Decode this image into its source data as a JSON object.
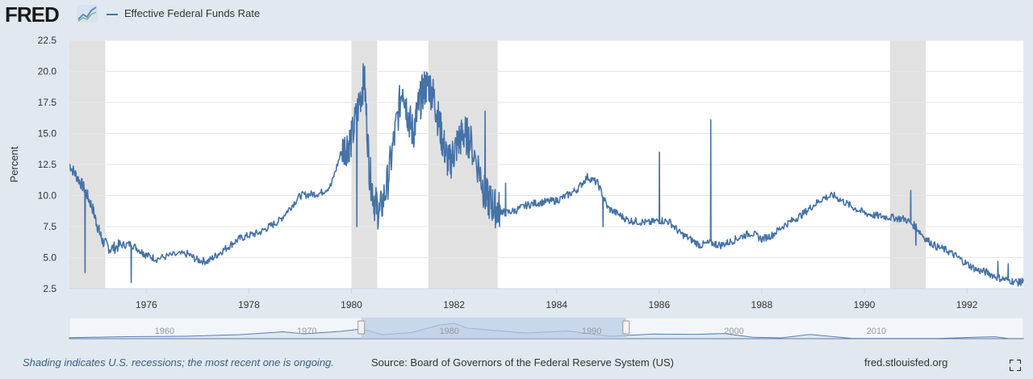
{
  "logo": {
    "text": "FRED",
    "mark_icon": "fred-graph-logo-icon"
  },
  "legend": {
    "label": "Effective Federal Funds Rate",
    "color": "#4572a7"
  },
  "footer": {
    "note": "Shading indicates U.S. recessions; the most recent one is ongoing.",
    "source": "Source: Board of Governors of the Federal Reserve System (US)",
    "site": "fred.stlouisfed.org",
    "fullscreen_icon": "fullscreen-icon"
  },
  "colors": {
    "line": "#4572a7",
    "recession": "#e1e1e1",
    "plot_bg": "#ffffff",
    "page_bg": "#e1e9f0",
    "navigator_fill": "#b8cbe6"
  },
  "chart_data": {
    "type": "line",
    "title": "",
    "xlabel": "",
    "ylabel": "Percent",
    "xlim": [
      1974.5,
      1993.1
    ],
    "ylim": [
      2.5,
      22.5
    ],
    "yticks": [
      2.5,
      5.0,
      7.5,
      10.0,
      12.5,
      15.0,
      17.5,
      20.0,
      22.5
    ],
    "ytick_labels": [
      "2.5",
      "5.0",
      "7.5",
      "10.0",
      "12.5",
      "15.0",
      "17.5",
      "20.0",
      "22.5"
    ],
    "xticks": [
      1976,
      1978,
      1980,
      1982,
      1984,
      1986,
      1988,
      1990,
      1992
    ],
    "xtick_labels": [
      "1976",
      "1978",
      "1980",
      "1982",
      "1984",
      "1986",
      "1988",
      "1990",
      "1992"
    ],
    "grid": true,
    "recessions": [
      [
        1974.5,
        1975.2
      ],
      [
        1980.0,
        1980.5
      ],
      [
        1981.5,
        1982.85
      ],
      [
        1990.5,
        1991.2
      ]
    ],
    "series": [
      {
        "name": "Effective Federal Funds Rate",
        "x": [
          1974.5,
          1974.65,
          1974.8,
          1974.95,
          1975.05,
          1975.15,
          1975.3,
          1975.5,
          1975.7,
          1975.9,
          1976.0,
          1976.2,
          1976.5,
          1976.8,
          1977.0,
          1977.2,
          1977.4,
          1977.6,
          1977.8,
          1978.0,
          1978.2,
          1978.4,
          1978.6,
          1978.8,
          1979.0,
          1979.2,
          1979.4,
          1979.6,
          1979.8,
          1979.9,
          1980.0,
          1980.15,
          1980.25,
          1980.35,
          1980.45,
          1980.55,
          1980.7,
          1980.85,
          1981.0,
          1981.1,
          1981.2,
          1981.3,
          1981.4,
          1981.5,
          1981.6,
          1981.7,
          1981.8,
          1981.9,
          1982.0,
          1982.1,
          1982.2,
          1982.3,
          1982.5,
          1982.6,
          1982.7,
          1982.8,
          1982.9,
          1983.0,
          1983.2,
          1983.4,
          1983.6,
          1983.8,
          1984.0,
          1984.2,
          1984.4,
          1984.6,
          1984.8,
          1985.0,
          1985.2,
          1985.4,
          1985.6,
          1985.8,
          1986.0,
          1986.2,
          1986.4,
          1986.6,
          1986.8,
          1987.0,
          1987.2,
          1987.4,
          1987.6,
          1987.8,
          1988.0,
          1988.2,
          1988.4,
          1988.6,
          1988.8,
          1989.0,
          1989.2,
          1989.4,
          1989.6,
          1989.8,
          1990.0,
          1990.2,
          1990.4,
          1990.6,
          1990.8,
          1991.0,
          1991.2,
          1991.4,
          1991.6,
          1991.8,
          1992.0,
          1992.2,
          1992.4,
          1992.6,
          1992.8,
          1993.0,
          1993.1
        ],
        "values": [
          12.5,
          11.5,
          10.5,
          9.0,
          7.5,
          6.3,
          5.7,
          6.0,
          6.1,
          5.5,
          5.2,
          4.9,
          5.2,
          5.3,
          4.8,
          4.7,
          5.3,
          5.9,
          6.5,
          6.8,
          7.0,
          7.5,
          8.0,
          9.0,
          10.0,
          10.1,
          10.2,
          10.8,
          13.5,
          14.0,
          14.5,
          17.5,
          19.5,
          12.0,
          9.5,
          8.5,
          11.0,
          15.0,
          19.0,
          16.5,
          15.0,
          17.0,
          18.5,
          19.0,
          18.0,
          16.0,
          14.0,
          12.5,
          13.5,
          14.5,
          15.0,
          14.5,
          12.0,
          10.0,
          9.5,
          9.0,
          8.8,
          8.6,
          8.8,
          9.2,
          9.4,
          9.5,
          9.6,
          10.0,
          10.5,
          11.5,
          11.0,
          9.0,
          8.5,
          8.0,
          7.9,
          7.8,
          8.0,
          7.9,
          7.0,
          6.5,
          6.0,
          6.2,
          6.0,
          6.3,
          6.7,
          7.0,
          6.5,
          6.8,
          7.5,
          8.0,
          8.5,
          9.2,
          9.8,
          10.0,
          9.5,
          9.0,
          8.6,
          8.4,
          8.3,
          8.2,
          8.1,
          7.5,
          6.5,
          5.9,
          5.6,
          5.1,
          4.5,
          4.0,
          3.8,
          3.4,
          3.2,
          3.0,
          3.1
        ]
      }
    ],
    "spikes": [
      [
        1974.8,
        3.8
      ],
      [
        1975.7,
        3.0
      ],
      [
        1980.1,
        7.5
      ],
      [
        1982.6,
        16.8
      ],
      [
        1983.0,
        11.0
      ],
      [
        1984.9,
        7.5
      ],
      [
        1986.0,
        13.5
      ],
      [
        1987.0,
        16.1
      ],
      [
        1987.1,
        5.8
      ],
      [
        1990.9,
        10.4
      ],
      [
        1991.0,
        6.0
      ],
      [
        1992.6,
        4.7
      ],
      [
        1992.8,
        4.5
      ]
    ],
    "navigator": {
      "xtick_labels": [
        "1960",
        "1970",
        "1980",
        "1990",
        "2000",
        "2010"
      ],
      "selected_range": [
        "1974",
        "1993"
      ]
    }
  }
}
